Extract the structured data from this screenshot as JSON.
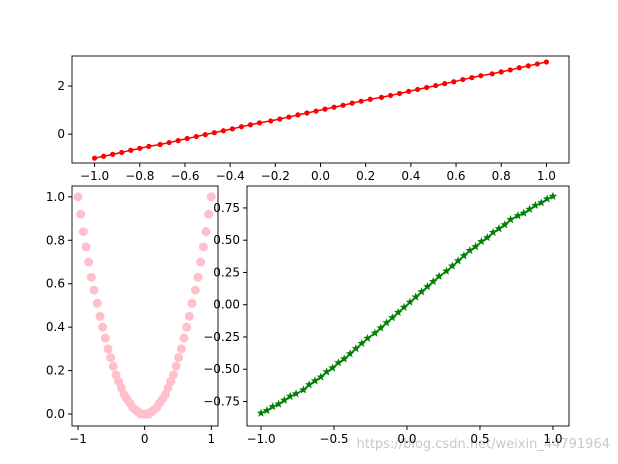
{
  "chart_data": [
    {
      "type": "line",
      "marker": "dot",
      "line": true,
      "color": "#ff0000",
      "x": [
        -1,
        -0.96,
        -0.92,
        -0.88,
        -0.84,
        -0.8,
        -0.76,
        -0.71,
        -0.67,
        -0.63,
        -0.59,
        -0.55,
        -0.51,
        -0.47,
        -0.43,
        -0.39,
        -0.35,
        -0.31,
        -0.27,
        -0.22,
        -0.18,
        -0.14,
        -0.1,
        -0.06,
        -0.02,
        0.02,
        0.06,
        0.1,
        0.14,
        0.18,
        0.22,
        0.27,
        0.31,
        0.35,
        0.39,
        0.43,
        0.47,
        0.51,
        0.55,
        0.59,
        0.63,
        0.67,
        0.71,
        0.76,
        0.8,
        0.84,
        0.88,
        0.92,
        0.96,
        1
      ],
      "y": [
        -1,
        -0.92,
        -0.84,
        -0.76,
        -0.67,
        -0.59,
        -0.51,
        -0.43,
        -0.35,
        -0.27,
        -0.18,
        -0.1,
        -0.02,
        0.06,
        0.14,
        0.22,
        0.31,
        0.39,
        0.47,
        0.55,
        0.63,
        0.71,
        0.8,
        0.88,
        0.96,
        1.04,
        1.12,
        1.2,
        1.29,
        1.37,
        1.45,
        1.53,
        1.61,
        1.69,
        1.78,
        1.86,
        1.94,
        2.02,
        2.1,
        2.18,
        2.27,
        2.35,
        2.43,
        2.51,
        2.59,
        2.67,
        2.76,
        2.84,
        2.92,
        3
      ],
      "xlim": [
        -1.1,
        1.1
      ],
      "ylim": [
        -1.2,
        3.25
      ],
      "xticks": [
        {
          "value": -1,
          "label": "−1.0"
        },
        {
          "value": -0.8,
          "label": "−0.8"
        },
        {
          "value": -0.6,
          "label": "−0.6"
        },
        {
          "value": -0.4,
          "label": "−0.4"
        },
        {
          "value": -0.2,
          "label": "−0.2"
        },
        {
          "value": 0,
          "label": "0.0"
        },
        {
          "value": 0.2,
          "label": "0.2"
        },
        {
          "value": 0.4,
          "label": "0.4"
        },
        {
          "value": 0.6,
          "label": "0.6"
        },
        {
          "value": 0.8,
          "label": "0.8"
        },
        {
          "value": 1,
          "label": "1.0"
        }
      ],
      "yticks": [
        0,
        2
      ]
    },
    {
      "type": "scatter",
      "marker": "circle",
      "line": false,
      "color": "#ffc0cb",
      "x": [
        -1,
        -0.96,
        -0.92,
        -0.88,
        -0.84,
        -0.8,
        -0.76,
        -0.71,
        -0.67,
        -0.63,
        -0.59,
        -0.55,
        -0.51,
        -0.47,
        -0.43,
        -0.39,
        -0.35,
        -0.31,
        -0.27,
        -0.22,
        -0.18,
        -0.14,
        -0.1,
        -0.06,
        -0.02,
        0.02,
        0.06,
        0.1,
        0.14,
        0.18,
        0.22,
        0.27,
        0.31,
        0.35,
        0.39,
        0.43,
        0.47,
        0.51,
        0.55,
        0.59,
        0.63,
        0.67,
        0.71,
        0.76,
        0.8,
        0.84,
        0.88,
        0.92,
        0.96,
        1
      ],
      "y": [
        1,
        0.92,
        0.84,
        0.77,
        0.7,
        0.63,
        0.57,
        0.51,
        0.45,
        0.4,
        0.35,
        0.3,
        0.26,
        0.22,
        0.18,
        0.15,
        0.12,
        0.09,
        0.07,
        0.05,
        0.03,
        0.02,
        0.01,
        0,
        0,
        0,
        0,
        0.01,
        0.02,
        0.03,
        0.05,
        0.07,
        0.09,
        0.12,
        0.15,
        0.18,
        0.22,
        0.26,
        0.3,
        0.35,
        0.4,
        0.45,
        0.51,
        0.57,
        0.63,
        0.7,
        0.77,
        0.84,
        0.92,
        1
      ],
      "xlim": [
        -1.09,
        1.1
      ],
      "ylim": [
        -0.055,
        1.05
      ],
      "xticks": [
        {
          "value": -1,
          "label": "−1"
        },
        0,
        1
      ],
      "yticks": [
        {
          "value": 0,
          "label": "0.0"
        },
        {
          "value": 0.2,
          "label": "0.2"
        },
        {
          "value": 0.4,
          "label": "0.4"
        },
        {
          "value": 0.6,
          "label": "0.6"
        },
        {
          "value": 0.8,
          "label": "0.8"
        },
        {
          "value": 1,
          "label": "1.0"
        }
      ]
    },
    {
      "type": "line",
      "marker": "star",
      "line": true,
      "color": "#008000",
      "x": [
        -1,
        -0.96,
        -0.92,
        -0.88,
        -0.84,
        -0.8,
        -0.76,
        -0.71,
        -0.67,
        -0.63,
        -0.59,
        -0.55,
        -0.51,
        -0.47,
        -0.43,
        -0.39,
        -0.35,
        -0.31,
        -0.27,
        -0.22,
        -0.18,
        -0.14,
        -0.1,
        -0.06,
        -0.02,
        0.02,
        0.06,
        0.1,
        0.14,
        0.18,
        0.22,
        0.27,
        0.31,
        0.35,
        0.39,
        0.43,
        0.47,
        0.51,
        0.55,
        0.59,
        0.63,
        0.67,
        0.71,
        0.76,
        0.8,
        0.84,
        0.88,
        0.92,
        0.96,
        1
      ],
      "y": [
        -0.84,
        -0.82,
        -0.79,
        -0.77,
        -0.74,
        -0.71,
        -0.69,
        -0.66,
        -0.62,
        -0.59,
        -0.56,
        -0.52,
        -0.49,
        -0.45,
        -0.42,
        -0.38,
        -0.34,
        -0.3,
        -0.26,
        -0.22,
        -0.18,
        -0.14,
        -0.1,
        -0.06,
        -0.02,
        0.02,
        0.06,
        0.1,
        0.14,
        0.18,
        0.22,
        0.26,
        0.3,
        0.34,
        0.38,
        0.42,
        0.45,
        0.49,
        0.52,
        0.56,
        0.59,
        0.62,
        0.66,
        0.69,
        0.71,
        0.74,
        0.77,
        0.79,
        0.82,
        0.84
      ],
      "xlim": [
        -1.096,
        1.11
      ],
      "ylim": [
        -0.94,
        0.92
      ],
      "xticks": [
        {
          "value": -1,
          "label": "−1.0"
        },
        {
          "value": -0.5,
          "label": "−0.5"
        },
        {
          "value": 0,
          "label": "0.0"
        },
        {
          "value": 0.5,
          "label": "0.5"
        },
        {
          "value": 1,
          "label": "1.0"
        }
      ],
      "yticks": [
        {
          "value": -0.75,
          "label": "−0.75"
        },
        {
          "value": -0.5,
          "label": "−0.50"
        },
        {
          "value": -0.25,
          "label": "−0.25"
        },
        {
          "value": 0,
          "label": "0.00"
        },
        {
          "value": 0.25,
          "label": "0.25"
        },
        {
          "value": 0.5,
          "label": "0.50"
        },
        {
          "value": 0.75,
          "label": "0.75"
        }
      ]
    }
  ],
  "watermark": "https://blog.csdn.net/weixin_44791964"
}
